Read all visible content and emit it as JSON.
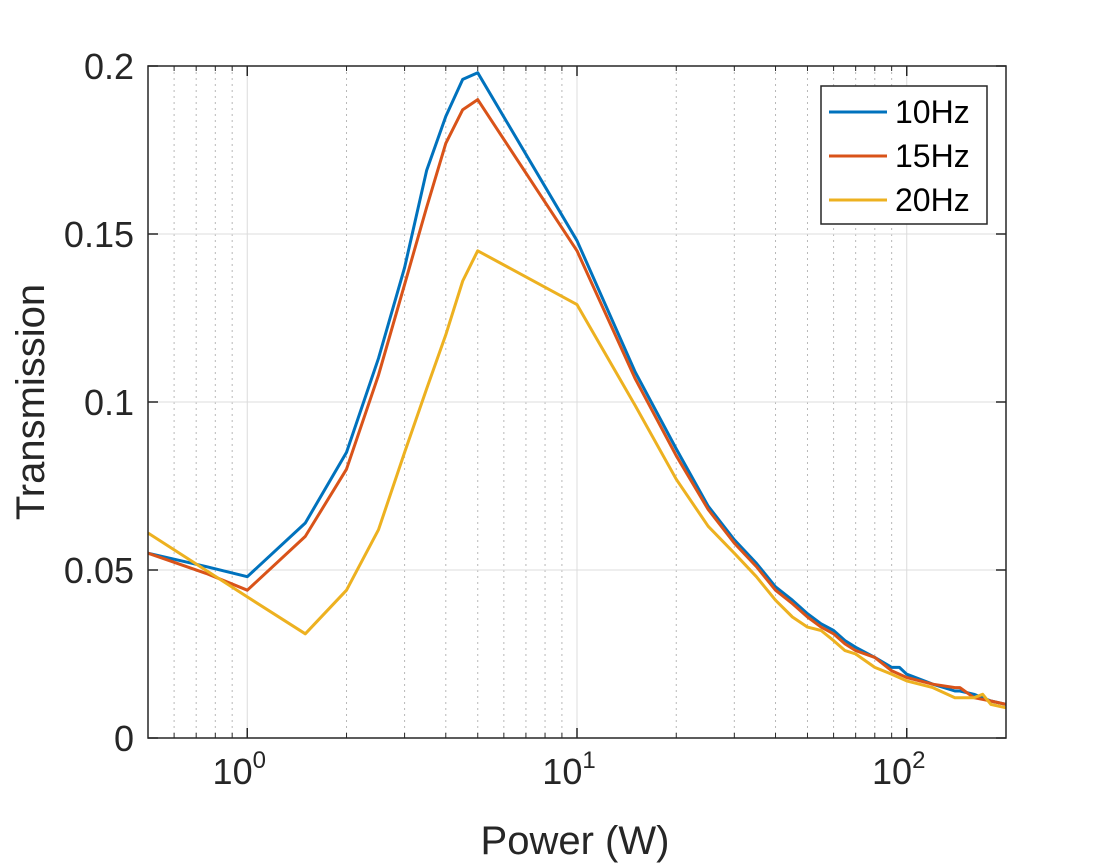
{
  "chart_data": {
    "type": "line",
    "title": "",
    "xlabel": "Power (W)",
    "ylabel": "Transmission",
    "xscale": "log",
    "xlim": [
      0.5,
      200
    ],
    "ylim": [
      0,
      0.2
    ],
    "grid": true,
    "legend_position": "top-right",
    "x_ticks": [
      {
        "value": 1,
        "base": "10",
        "exp": "0"
      },
      {
        "value": 10,
        "base": "10",
        "exp": "1"
      },
      {
        "value": 100,
        "base": "10",
        "exp": "2"
      }
    ],
    "y_ticks": [
      {
        "value": 0,
        "label": "0"
      },
      {
        "value": 0.05,
        "label": "0.05"
      },
      {
        "value": 0.1,
        "label": "0.1"
      },
      {
        "value": 0.15,
        "label": "0.15"
      },
      {
        "value": 0.2,
        "label": "0.2"
      }
    ],
    "series": [
      {
        "name": "10Hz",
        "color": "#0072BD",
        "x": [
          0.5,
          0.75,
          1,
          1.5,
          2,
          2.5,
          3,
          3.5,
          4,
          4.5,
          5,
          10,
          15,
          20,
          25,
          30,
          35,
          40,
          45,
          50,
          55,
          60,
          65,
          70,
          80,
          90,
          95,
          100,
          120,
          140,
          145,
          160,
          180,
          200
        ],
        "values": [
          0.055,
          0.051,
          0.048,
          0.064,
          0.085,
          0.113,
          0.14,
          0.169,
          0.185,
          0.196,
          0.198,
          0.148,
          0.109,
          0.086,
          0.069,
          0.059,
          0.052,
          0.045,
          0.041,
          0.037,
          0.034,
          0.032,
          0.029,
          0.027,
          0.024,
          0.021,
          0.021,
          0.019,
          0.016,
          0.014,
          0.014,
          0.013,
          0.011,
          0.01
        ]
      },
      {
        "name": "15Hz",
        "color": "#D95319",
        "x": [
          0.5,
          0.75,
          1,
          1.5,
          2,
          2.5,
          3,
          3.5,
          4,
          4.5,
          5,
          10,
          15,
          20,
          25,
          30,
          35,
          40,
          45,
          50,
          55,
          60,
          65,
          70,
          80,
          90,
          100,
          120,
          140,
          145,
          160,
          180,
          200
        ],
        "values": [
          0.055,
          0.049,
          0.044,
          0.06,
          0.08,
          0.108,
          0.135,
          0.158,
          0.177,
          0.187,
          0.19,
          0.145,
          0.107,
          0.084,
          0.068,
          0.058,
          0.051,
          0.044,
          0.04,
          0.036,
          0.033,
          0.031,
          0.028,
          0.026,
          0.024,
          0.02,
          0.018,
          0.016,
          0.015,
          0.015,
          0.012,
          0.011,
          0.01
        ]
      },
      {
        "name": "20Hz",
        "color": "#EDB120",
        "x": [
          0.5,
          1,
          1.5,
          2,
          2.5,
          3,
          3.5,
          4,
          4.5,
          5,
          10,
          15,
          20,
          25,
          30,
          35,
          40,
          45,
          50,
          55,
          60,
          65,
          70,
          80,
          90,
          100,
          120,
          140,
          160,
          170,
          180,
          200
        ],
        "values": [
          0.061,
          0.042,
          0.031,
          0.044,
          0.062,
          0.085,
          0.104,
          0.12,
          0.136,
          0.145,
          0.129,
          0.099,
          0.077,
          0.063,
          0.055,
          0.048,
          0.041,
          0.036,
          0.033,
          0.032,
          0.029,
          0.026,
          0.025,
          0.021,
          0.019,
          0.017,
          0.015,
          0.012,
          0.012,
          0.013,
          0.01,
          0.009
        ]
      }
    ]
  }
}
